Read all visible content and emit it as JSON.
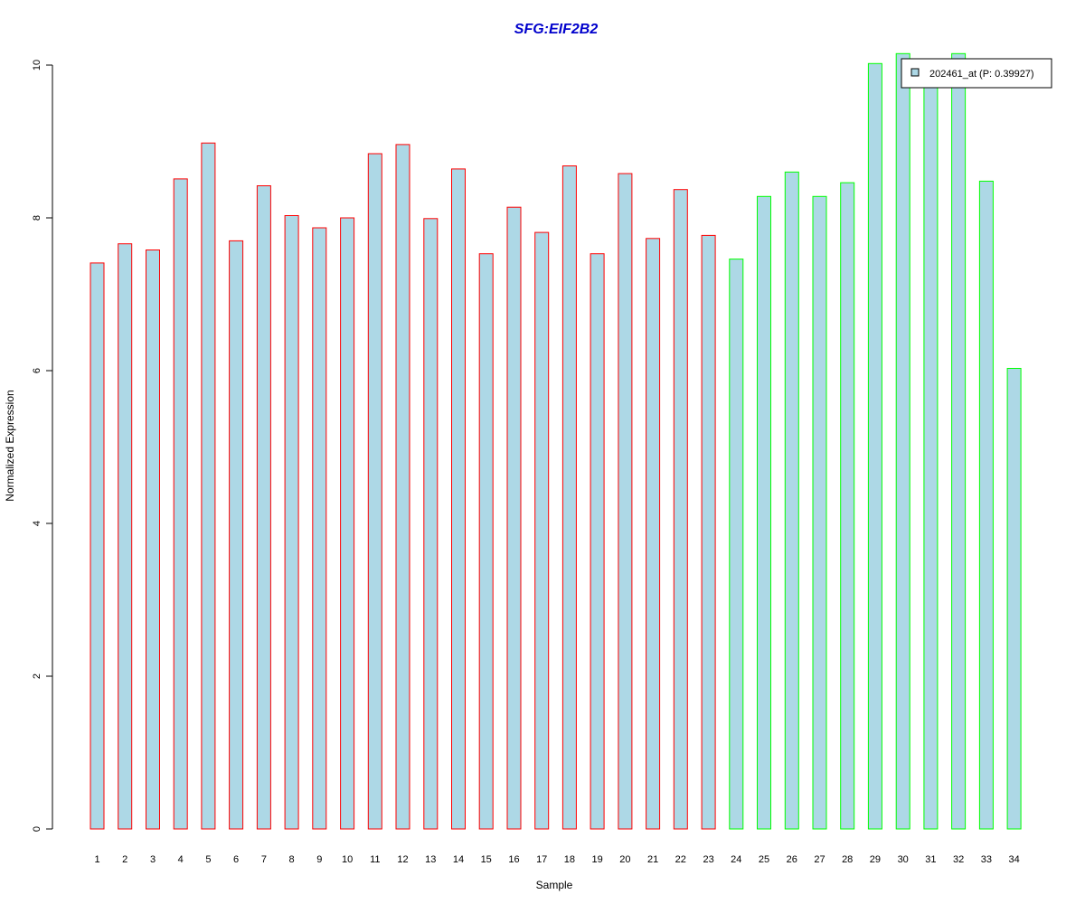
{
  "chart_data": {
    "type": "bar",
    "title": "SFG:EIF2B2",
    "xlabel": "Sample",
    "ylabel": "Normalized Expression",
    "ylim": [
      0,
      10
    ],
    "yticks": [
      "0",
      "2",
      "4",
      "6",
      "8",
      "10"
    ],
    "categories": [
      "1",
      "2",
      "3",
      "4",
      "5",
      "6",
      "7",
      "8",
      "9",
      "10",
      "11",
      "12",
      "13",
      "14",
      "15",
      "16",
      "17",
      "18",
      "19",
      "20",
      "21",
      "22",
      "23",
      "24",
      "25",
      "26",
      "27",
      "28",
      "29",
      "30",
      "31",
      "32",
      "33",
      "34"
    ],
    "values": [
      7.41,
      7.66,
      7.58,
      8.51,
      8.98,
      7.7,
      8.42,
      8.03,
      7.87,
      8.0,
      8.84,
      8.96,
      7.99,
      8.64,
      7.53,
      8.14,
      7.81,
      8.68,
      7.53,
      8.58,
      7.73,
      8.37,
      7.77,
      7.46,
      8.28,
      8.6,
      8.28,
      8.46,
      10.02,
      10.15,
      10.05,
      10.15,
      8.48,
      6.03
    ],
    "groups": [
      "red",
      "red",
      "red",
      "red",
      "red",
      "red",
      "red",
      "red",
      "red",
      "red",
      "red",
      "red",
      "red",
      "red",
      "red",
      "red",
      "red",
      "red",
      "red",
      "red",
      "red",
      "red",
      "red",
      "green",
      "green",
      "green",
      "green",
      "green",
      "green",
      "green",
      "green",
      "green",
      "green",
      "green"
    ],
    "legend": {
      "label": "202461_at (P: 0.39927)",
      "position": "top-right"
    },
    "colors": {
      "bar_fill": "#add8e6",
      "border_red": "#ff0000",
      "border_green": "#00ff00",
      "title": "#0000cc",
      "axis": "#000000"
    },
    "grid": false
  }
}
